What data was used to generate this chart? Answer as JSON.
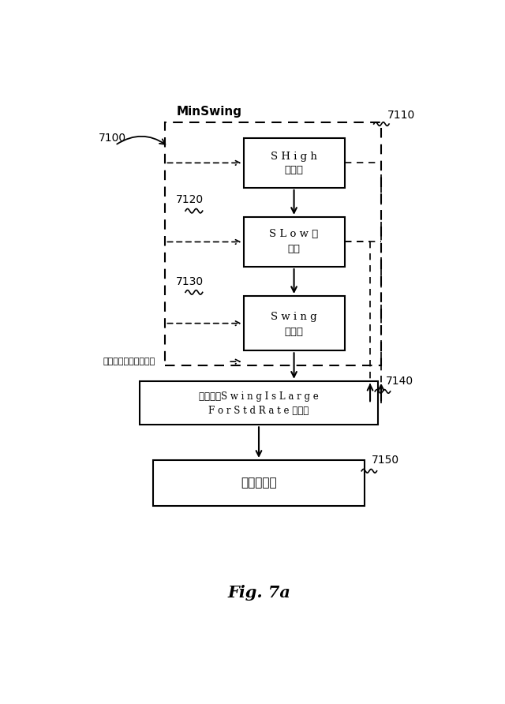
{
  "title": "Fig. 7a",
  "bg_color": "#ffffff",
  "label_minswing": "MinSwing",
  "label_7100": "7100",
  "label_7110": "7110",
  "label_7120": "7120",
  "label_7130": "7130",
  "label_7140": "7140",
  "label_7150": "7150",
  "box_shigh_line1": "S H i g h",
  "box_shigh_line2": "を計算",
  "box_slow_line1": "S L o w を",
  "box_slow_line2": "計算",
  "box_swing_line1": "S w i n g",
  "box_swing_line2": "を計算",
  "box_fuzzy_line1": "ファジィS w i n g I s L a r g e",
  "box_fuzzy_line2": "F o r S t d R a t e を計算",
  "box_phase_text": "位相を計算",
  "label_pressure": "最小値を超える圧補助"
}
